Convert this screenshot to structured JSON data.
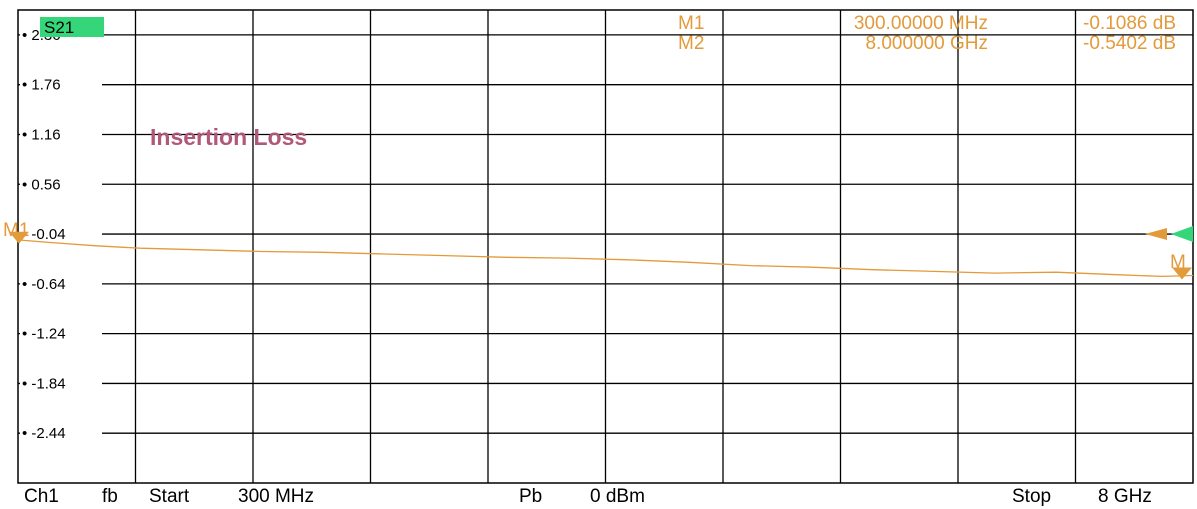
{
  "trace": {
    "label": "S21",
    "label_bg": "#35d67a"
  },
  "annotation": "Insertion Loss",
  "markers": [
    {
      "label": "M1",
      "stimulus": "300.00000 MHz",
      "response": "-0.1086 dB",
      "tag": "M1"
    },
    {
      "label": "M2",
      "stimulus": "8.000000 GHz",
      "response": "-0.5402 dB",
      "tag": "M"
    }
  ],
  "footer": {
    "channel": "Ch1",
    "mode": "fb",
    "start_label": "Start",
    "start_value": "300 MHz",
    "power_label": "Pb",
    "power_value": "0 dBm",
    "stop_label": "Stop",
    "stop_value": "8 GHz"
  },
  "colors": {
    "trace": "#e39a3b",
    "grid": "#000000",
    "annotation": "#b05878",
    "ref_marker": "#35d67a"
  },
  "chart_data": {
    "type": "line",
    "title": "",
    "xlabel": "",
    "ylabel": "",
    "xlim": [
      0.3,
      8.0
    ],
    "ylim": [
      -3.04,
      2.66
    ],
    "x_unit": "GHz",
    "y_unit": "dB",
    "y_ticks": [
      2.36,
      1.76,
      1.16,
      0.56,
      -0.04,
      -0.64,
      -1.24,
      -1.84,
      -2.44
    ],
    "y_tick_labels": [
      "2.36",
      "1.76",
      "1.16",
      "0.56",
      "-0.04",
      "-0.64",
      "-1.24",
      "-1.84",
      "-2.44"
    ],
    "x_divisions": 10,
    "grid": true,
    "reference_level": -0.04,
    "series": [
      {
        "x": [
          0.3,
          0.5,
          0.8,
          1.1,
          1.5,
          1.9,
          2.3,
          2.7,
          3.1,
          3.5,
          3.9,
          4.3,
          4.7,
          5.1,
          5.5,
          5.9,
          6.3,
          6.7,
          7.1,
          7.5,
          7.8,
          8.0
        ],
        "values": [
          -0.11,
          -0.14,
          -0.18,
          -0.21,
          -0.23,
          -0.25,
          -0.26,
          -0.28,
          -0.3,
          -0.32,
          -0.33,
          -0.35,
          -0.38,
          -0.42,
          -0.44,
          -0.47,
          -0.49,
          -0.51,
          -0.5,
          -0.53,
          -0.55,
          -0.54
        ]
      }
    ],
    "marker_points": [
      {
        "name": "M1",
        "x": 0.3,
        "y": -0.1086
      },
      {
        "name": "M2",
        "x": 8.0,
        "y": -0.5402
      }
    ]
  }
}
